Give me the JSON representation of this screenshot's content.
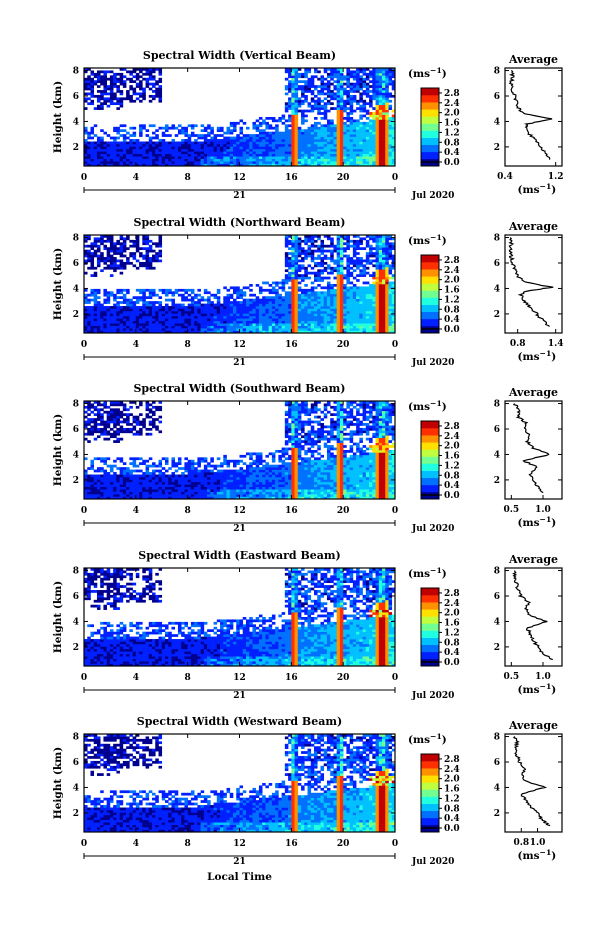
{
  "figure": {
    "xlabel": "Local Time",
    "date_label": "Jul 2020",
    "day_label": "21",
    "ylabel": "Height (km)",
    "avg_title": "Average",
    "unit_label": "(ms",
    "unit_exp": "−1",
    "unit_close": ")",
    "x_ticks": [
      "0",
      "4",
      "8",
      "12",
      "16",
      "20",
      "0"
    ],
    "y_ticks": [
      "2",
      "4",
      "6",
      "8"
    ],
    "cbar_ticks": [
      "0.0",
      "0.4",
      "0.8",
      "1.2",
      "1.6",
      "2.0",
      "2.4",
      "2.8"
    ]
  },
  "colors": {
    "scale": [
      "#00008f",
      "#0020ff",
      "#0070ff",
      "#00c0ff",
      "#20ffe0",
      "#70ff90",
      "#c0ff40",
      "#ffe000",
      "#ff9000",
      "#ff3000",
      "#c00000"
    ]
  },
  "chart_data": [
    {
      "type": "heatmap",
      "title": "Spectral Width (Vertical Beam)",
      "xlabel": "Local Time",
      "ylabel": "Height (km)",
      "xlim": [
        0,
        24
      ],
      "ylim": [
        0.5,
        8.2
      ],
      "clim": [
        0,
        3.0
      ],
      "colorbar_label": "(ms−1)",
      "average": {
        "title": "Average",
        "xlim": [
          0.4,
          1.3
        ],
        "x_ticks": [
          "0.4",
          "1.2"
        ],
        "x_tick_values": [
          0.4,
          1.2
        ],
        "profile": [
          [
            1.1,
            1.0
          ],
          [
            1.05,
            1.5
          ],
          [
            0.95,
            2.0
          ],
          [
            0.9,
            2.5
          ],
          [
            0.78,
            3.0
          ],
          [
            0.72,
            3.5
          ],
          [
            0.75,
            3.8
          ],
          [
            1.15,
            4.2
          ],
          [
            0.7,
            4.6
          ],
          [
            0.62,
            5.0
          ],
          [
            0.58,
            5.5
          ],
          [
            0.55,
            6.0
          ],
          [
            0.52,
            6.5
          ],
          [
            0.5,
            7.0
          ],
          [
            0.52,
            7.5
          ],
          [
            0.5,
            8.0
          ]
        ]
      }
    },
    {
      "type": "heatmap",
      "title": "Spectral Width (Northward Beam)",
      "xlabel": "Local Time",
      "ylabel": "Height (km)",
      "xlim": [
        0,
        24
      ],
      "ylim": [
        0.5,
        8.2
      ],
      "clim": [
        0,
        3.0
      ],
      "colorbar_label": "(ms−1)",
      "average": {
        "title": "Average",
        "xlim": [
          0.6,
          1.5
        ],
        "x_ticks": [
          "0.8",
          "1.4"
        ],
        "x_tick_values": [
          0.8,
          1.4
        ],
        "profile": [
          [
            1.3,
            1.0
          ],
          [
            1.2,
            1.5
          ],
          [
            1.1,
            2.0
          ],
          [
            1.0,
            2.5
          ],
          [
            0.9,
            3.0
          ],
          [
            0.85,
            3.5
          ],
          [
            0.95,
            3.8
          ],
          [
            1.35,
            4.1
          ],
          [
            0.9,
            4.5
          ],
          [
            0.8,
            5.0
          ],
          [
            0.75,
            5.5
          ],
          [
            0.72,
            6.0
          ],
          [
            0.7,
            6.5
          ],
          [
            0.68,
            7.0
          ],
          [
            0.7,
            7.5
          ],
          [
            0.68,
            8.0
          ]
        ]
      }
    },
    {
      "type": "heatmap",
      "title": "Spectral Width (Southward Beam)",
      "xlabel": "Local Time",
      "ylabel": "Height (km)",
      "xlim": [
        0,
        24
      ],
      "ylim": [
        0.5,
        8.2
      ],
      "clim": [
        0,
        3.0
      ],
      "colorbar_label": "(ms−1)",
      "average": {
        "title": "Average",
        "xlim": [
          0.4,
          1.3
        ],
        "x_ticks": [
          "0.5",
          "1.0"
        ],
        "x_tick_values": [
          0.5,
          1.0
        ],
        "profile": [
          [
            1.0,
            1.0
          ],
          [
            0.9,
            1.5
          ],
          [
            0.85,
            2.0
          ],
          [
            0.8,
            2.5
          ],
          [
            0.9,
            3.0
          ],
          [
            0.7,
            3.5
          ],
          [
            1.1,
            4.0
          ],
          [
            0.85,
            4.5
          ],
          [
            0.75,
            5.0
          ],
          [
            0.8,
            5.5
          ],
          [
            0.7,
            6.0
          ],
          [
            0.72,
            6.5
          ],
          [
            0.6,
            7.0
          ],
          [
            0.62,
            7.5
          ],
          [
            0.55,
            8.0
          ]
        ]
      }
    },
    {
      "type": "heatmap",
      "title": "Spectral Width (Eastward Beam)",
      "xlabel": "Local Time",
      "ylabel": "Height (km)",
      "xlim": [
        0,
        24
      ],
      "ylim": [
        0.5,
        8.2
      ],
      "clim": [
        0,
        3.0
      ],
      "colorbar_label": "(ms−1)",
      "average": {
        "title": "Average",
        "xlim": [
          0.4,
          1.3
        ],
        "x_ticks": [
          "0.5",
          "1.0"
        ],
        "x_tick_values": [
          0.5,
          1.0
        ],
        "profile": [
          [
            1.15,
            1.0
          ],
          [
            1.0,
            1.5
          ],
          [
            0.92,
            2.0
          ],
          [
            0.85,
            2.5
          ],
          [
            0.8,
            3.0
          ],
          [
            0.75,
            3.5
          ],
          [
            1.05,
            4.0
          ],
          [
            0.8,
            4.5
          ],
          [
            0.72,
            5.0
          ],
          [
            0.78,
            5.5
          ],
          [
            0.65,
            6.0
          ],
          [
            0.6,
            6.5
          ],
          [
            0.58,
            7.0
          ],
          [
            0.55,
            7.5
          ],
          [
            0.55,
            8.0
          ]
        ]
      }
    },
    {
      "type": "heatmap",
      "title": "Spectral Width (Westward Beam)",
      "xlabel": "Local Time",
      "ylabel": "Height (km)",
      "xlim": [
        0,
        24
      ],
      "ylim": [
        0.5,
        8.2
      ],
      "clim": [
        0,
        3.0
      ],
      "colorbar_label": "(ms−1)",
      "average": {
        "title": "Average",
        "xlim": [
          0.6,
          1.3
        ],
        "x_ticks": [
          "0.8",
          "1.0"
        ],
        "x_tick_values": [
          0.8,
          1.0
        ],
        "profile": [
          [
            1.15,
            1.0
          ],
          [
            1.05,
            1.5
          ],
          [
            1.0,
            2.0
          ],
          [
            0.92,
            2.5
          ],
          [
            0.85,
            3.0
          ],
          [
            0.8,
            3.5
          ],
          [
            1.1,
            4.0
          ],
          [
            0.85,
            4.5
          ],
          [
            0.8,
            5.0
          ],
          [
            0.85,
            5.5
          ],
          [
            0.78,
            6.0
          ],
          [
            0.75,
            6.5
          ],
          [
            0.72,
            7.0
          ],
          [
            0.75,
            7.5
          ],
          [
            0.72,
            8.0
          ]
        ]
      }
    }
  ]
}
